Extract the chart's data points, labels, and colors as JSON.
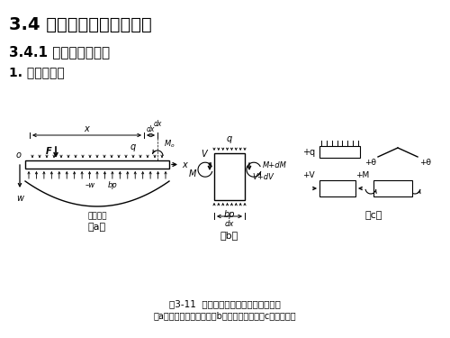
{
  "title1": "3.4 文克勒地基上梁的计算",
  "title2": "3.4.1 无限长梁的解答",
  "title3": "1. 微分方程式",
  "caption": "图3-11  文克勒地基上基础梁的计算图式",
  "subcaption": "（a）梁上荷载和挠曲；（b）梁的微单元；（c）符号规定",
  "label_a": "（a）",
  "label_b": "（b）",
  "label_c": "（c）",
  "bg_color": "#ffffff",
  "font_size_title1": 14,
  "font_size_title2": 11,
  "font_size_title3": 10,
  "font_size_caption": 7.5,
  "font_size_label": 8
}
